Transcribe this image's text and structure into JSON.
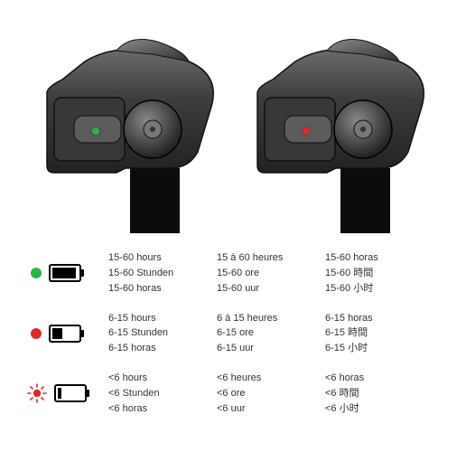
{
  "colors": {
    "green": "#2bb24c",
    "red": "#d92b2b",
    "black": "#000000",
    "device_dark": "#2a2a2a",
    "device_mid": "#4a4a4a",
    "device_light": "#7a7a7a",
    "device_shaft": "#111111"
  },
  "devices": [
    {
      "led_color": "#2bb24c",
      "name": "device-green-led"
    },
    {
      "led_color": "#d92b2b",
      "name": "device-red-led"
    }
  ],
  "legend": [
    {
      "indicator": {
        "type": "solid-dot",
        "color": "#2bb24c"
      },
      "battery_level_pct": 80,
      "labels": {
        "en": "15-60 hours",
        "fr": "15 à 60 heures",
        "es2": "15-60 horas",
        "de": "15-60 Stunden",
        "it": "15-60 ore",
        "ja": "15-60 時間",
        "es": "15-60 horas",
        "nl": "15-60 uur",
        "zh": "15-60 小时"
      }
    },
    {
      "indicator": {
        "type": "solid-dot",
        "color": "#d92b2b"
      },
      "battery_level_pct": 35,
      "labels": {
        "en": "6-15 hours",
        "fr": "6 à 15 heures",
        "es2": "6-15 horas",
        "de": "6-15 Stunden",
        "it": "6-15 ore",
        "ja": "6-15 時間",
        "es": "6-15 horas",
        "nl": "6-15 uur",
        "zh": "6-15 小时"
      }
    },
    {
      "indicator": {
        "type": "blinking",
        "color": "#d92b2b"
      },
      "battery_level_pct": 12,
      "labels": {
        "en": "<6 hours",
        "fr": "<6 heures",
        "es2": "<6 horas",
        "de": "<6 Stunden",
        "it": "<6 ore",
        "ja": "<6 時間",
        "es": "<6 horas",
        "nl": "<6 uur",
        "zh": "<6 小时"
      }
    }
  ]
}
